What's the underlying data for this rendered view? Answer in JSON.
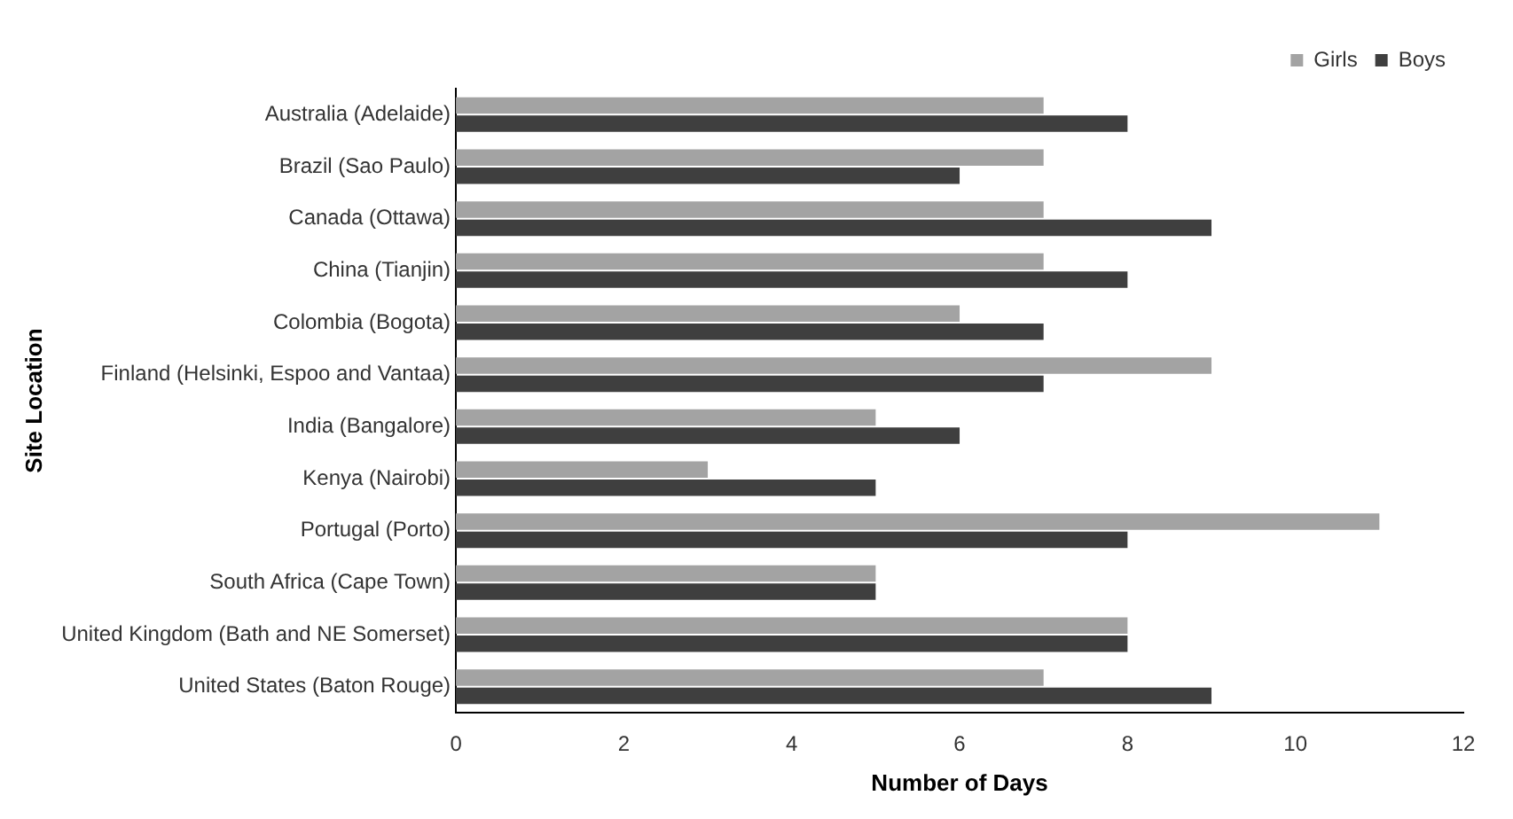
{
  "chart_data": {
    "type": "bar",
    "orientation": "horizontal",
    "xlabel": "Number of Days",
    "ylabel": "Site Location",
    "categories": [
      "Australia (Adelaide)",
      "Brazil (Sao Paulo)",
      "Canada (Ottawa)",
      "China (Tianjin)",
      "Colombia (Bogota)",
      "Finland (Helsinki, Espoo and Vantaa)",
      "India (Bangalore)",
      "Kenya (Nairobi)",
      "Portugal (Porto)",
      "South Africa (Cape Town)",
      "United Kingdom (Bath and NE Somerset)",
      "United States (Baton Rouge)"
    ],
    "series": [
      {
        "name": "Girls",
        "color": "#a3a3a3",
        "values": [
          7,
          7,
          7,
          7,
          6,
          9,
          5,
          3,
          11,
          5,
          8,
          7
        ]
      },
      {
        "name": "Boys",
        "color": "#3f3f3f",
        "values": [
          8,
          6,
          9,
          8,
          7,
          7,
          6,
          5,
          8,
          5,
          8,
          9
        ]
      }
    ],
    "xlim": [
      0,
      12
    ],
    "xticks": [
      0,
      2,
      4,
      6,
      8,
      10,
      12
    ],
    "grid": false,
    "legend": "top right"
  }
}
